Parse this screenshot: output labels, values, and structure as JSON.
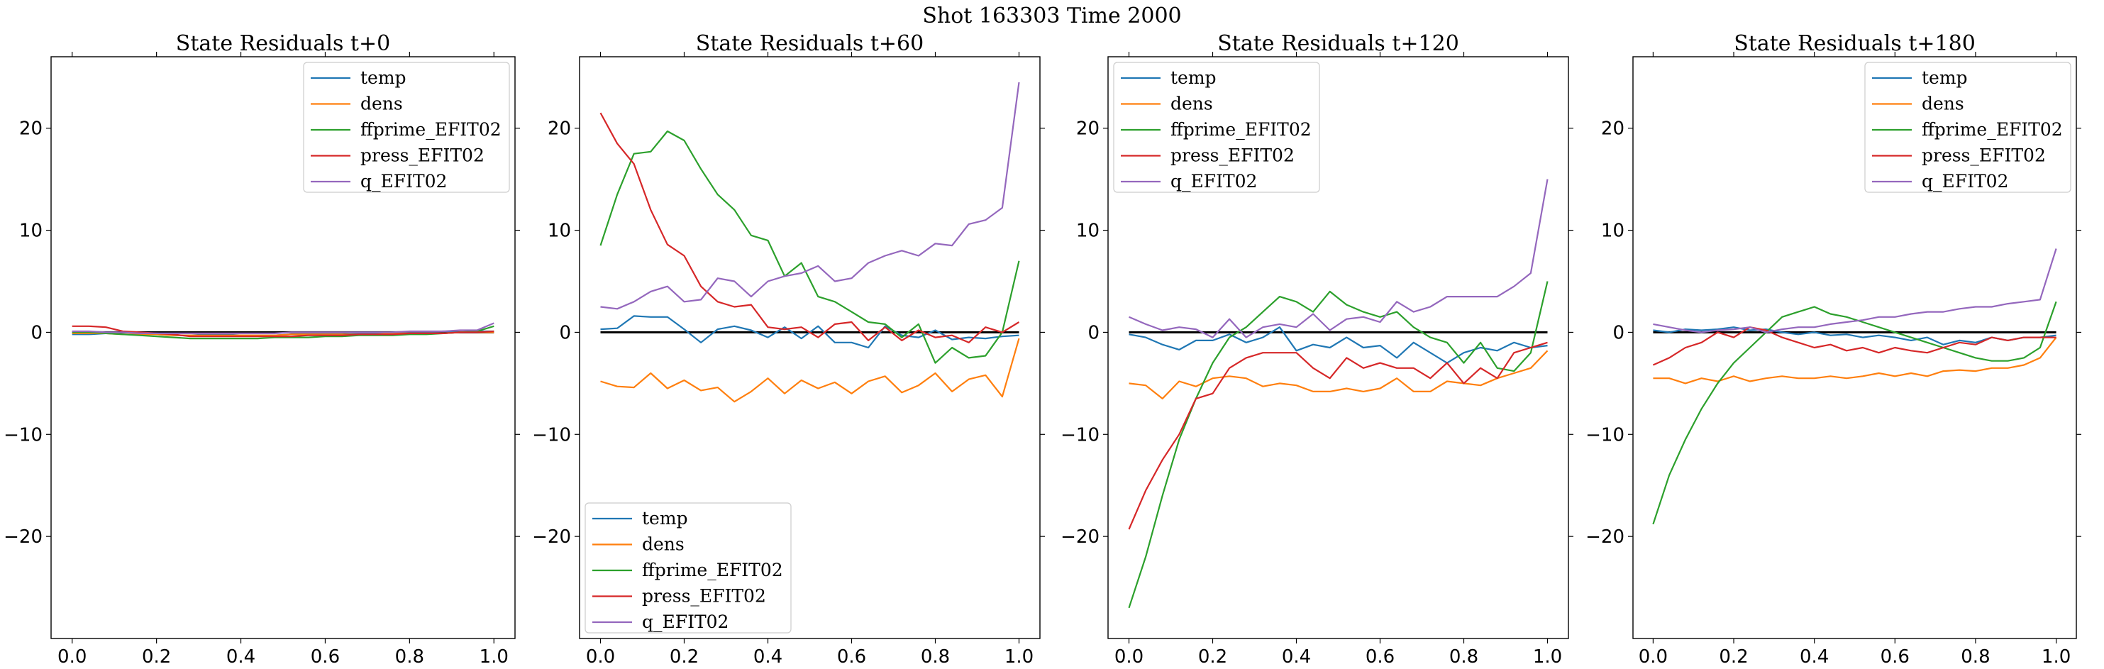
{
  "figure": {
    "suptitle": "Shot 163303   Time 2000"
  },
  "chart_data": [
    {
      "type": "line",
      "title": "State Residuals t+0",
      "xlabel": "",
      "ylabel": "",
      "xlim": [
        -0.05,
        1.05
      ],
      "ylim": [
        -30,
        27
      ],
      "xticks": [
        0.0,
        0.2,
        0.4,
        0.6,
        0.8,
        1.0
      ],
      "xtick_labels": [
        "0.0",
        "0.2",
        "0.4",
        "0.6",
        "0.8",
        "1.0"
      ],
      "yticks": [
        -20,
        -10,
        0,
        10,
        20
      ],
      "ytick_labels": [
        "−20",
        "−10",
        "0",
        "10",
        "20"
      ],
      "zero_line": true,
      "legend_position": "upper right",
      "x": [
        0.0,
        0.04,
        0.08,
        0.12,
        0.16,
        0.2,
        0.24,
        0.28,
        0.32,
        0.36,
        0.4,
        0.44,
        0.48,
        0.52,
        0.56,
        0.6,
        0.64,
        0.68,
        0.72,
        0.76,
        0.8,
        0.84,
        0.88,
        0.92,
        0.96,
        1.0
      ],
      "series": [
        {
          "name": "temp",
          "color": "#1f77b4",
          "values": [
            -0.2,
            -0.2,
            -0.1,
            0.0,
            -0.1,
            -0.2,
            -0.3,
            -0.3,
            -0.2,
            -0.2,
            -0.3,
            -0.3,
            -0.3,
            -0.2,
            -0.2,
            -0.2,
            -0.2,
            -0.1,
            -0.1,
            0.0,
            0.0,
            0.0,
            0.1,
            0.0,
            0.1,
            0.1
          ]
        },
        {
          "name": "dens",
          "color": "#ff7f0e",
          "values": [
            -0.1,
            -0.1,
            -0.1,
            -0.2,
            -0.2,
            -0.2,
            -0.3,
            -0.3,
            -0.3,
            -0.3,
            -0.3,
            -0.3,
            -0.3,
            -0.2,
            -0.2,
            -0.2,
            -0.2,
            -0.2,
            -0.2,
            -0.1,
            -0.1,
            -0.1,
            -0.1,
            0.0,
            0.0,
            0.0
          ]
        },
        {
          "name": "ffprime_EFIT02",
          "color": "#2ca02c",
          "values": [
            0.0,
            0.0,
            -0.1,
            -0.2,
            -0.3,
            -0.4,
            -0.5,
            -0.6,
            -0.6,
            -0.6,
            -0.6,
            -0.6,
            -0.5,
            -0.5,
            -0.5,
            -0.4,
            -0.4,
            -0.3,
            -0.3,
            -0.3,
            -0.2,
            -0.2,
            -0.1,
            0.0,
            0.1,
            0.6
          ]
        },
        {
          "name": "press_EFIT02",
          "color": "#d62728",
          "values": [
            0.6,
            0.6,
            0.5,
            0.1,
            0.0,
            -0.1,
            -0.2,
            -0.4,
            -0.4,
            -0.4,
            -0.4,
            -0.4,
            -0.4,
            -0.4,
            -0.3,
            -0.3,
            -0.3,
            -0.2,
            -0.2,
            -0.2,
            -0.1,
            -0.1,
            -0.1,
            0.0,
            0.0,
            0.1
          ]
        },
        {
          "name": "q_EFIT02",
          "color": "#9467bd",
          "values": [
            0.1,
            0.1,
            0.0,
            0.0,
            -0.1,
            -0.1,
            -0.1,
            -0.1,
            -0.1,
            -0.1,
            -0.1,
            -0.1,
            -0.1,
            0.0,
            0.0,
            0.0,
            0.0,
            0.0,
            0.0,
            0.0,
            0.1,
            0.1,
            0.1,
            0.2,
            0.2,
            0.9
          ]
        }
      ]
    },
    {
      "type": "line",
      "title": "State Residuals t+60",
      "xlabel": "",
      "ylabel": "",
      "xlim": [
        -0.05,
        1.05
      ],
      "ylim": [
        -30,
        27
      ],
      "xticks": [
        0.0,
        0.2,
        0.4,
        0.6,
        0.8,
        1.0
      ],
      "xtick_labels": [
        "0.0",
        "0.2",
        "0.4",
        "0.6",
        "0.8",
        "1.0"
      ],
      "yticks": [
        -20,
        -10,
        0,
        10,
        20
      ],
      "ytick_labels": [
        "−20",
        "−10",
        "0",
        "10",
        "20"
      ],
      "zero_line": true,
      "legend_position": "lower left",
      "x": [
        0.0,
        0.04,
        0.08,
        0.12,
        0.16,
        0.2,
        0.24,
        0.28,
        0.32,
        0.36,
        0.4,
        0.44,
        0.48,
        0.52,
        0.56,
        0.6,
        0.64,
        0.68,
        0.72,
        0.76,
        0.8,
        0.84,
        0.88,
        0.92,
        0.96,
        1.0
      ],
      "series": [
        {
          "name": "temp",
          "color": "#1f77b4",
          "values": [
            0.3,
            0.4,
            1.6,
            1.5,
            1.5,
            0.3,
            -1.0,
            0.3,
            0.6,
            0.2,
            -0.5,
            0.5,
            -0.6,
            0.6,
            -1.0,
            -1.0,
            -1.5,
            0.6,
            -0.3,
            -0.5,
            0.2,
            -0.7,
            -0.5,
            -0.6,
            -0.4,
            -0.3
          ]
        },
        {
          "name": "dens",
          "color": "#ff7f0e",
          "values": [
            -4.8,
            -5.3,
            -5.4,
            -4.0,
            -5.5,
            -4.7,
            -5.7,
            -5.4,
            -6.8,
            -5.8,
            -4.5,
            -6.0,
            -4.7,
            -5.5,
            -4.9,
            -6.0,
            -4.8,
            -4.3,
            -5.9,
            -5.2,
            -4.0,
            -5.8,
            -4.6,
            -4.2,
            -6.3,
            -0.6
          ]
        },
        {
          "name": "ffprime_EFIT02",
          "color": "#2ca02c",
          "values": [
            8.5,
            13.5,
            17.5,
            17.7,
            19.7,
            18.8,
            16.0,
            13.5,
            12.0,
            9.5,
            9.0,
            5.5,
            6.8,
            3.5,
            3.0,
            2.0,
            1.0,
            0.8,
            -0.5,
            0.8,
            -3.0,
            -1.5,
            -2.5,
            -2.3,
            0.0,
            7.0
          ]
        },
        {
          "name": "press_EFIT02",
          "color": "#d62728",
          "values": [
            21.5,
            18.5,
            16.5,
            12.0,
            8.6,
            7.5,
            4.5,
            3.0,
            2.5,
            2.7,
            0.5,
            0.3,
            0.5,
            -0.5,
            0.8,
            1.0,
            -0.8,
            0.5,
            -0.8,
            0.2,
            -0.5,
            -0.3,
            -1.0,
            0.5,
            0.0,
            1.0
          ]
        },
        {
          "name": "q_EFIT02",
          "color": "#9467bd",
          "values": [
            2.5,
            2.3,
            3.0,
            4.0,
            4.5,
            3.0,
            3.2,
            5.3,
            5.0,
            3.5,
            5.0,
            5.5,
            5.8,
            6.5,
            5.0,
            5.3,
            6.8,
            7.5,
            8.0,
            7.5,
            8.7,
            8.5,
            10.6,
            11.0,
            12.2,
            24.5
          ]
        }
      ]
    },
    {
      "type": "line",
      "title": "State Residuals t+120",
      "xlabel": "",
      "ylabel": "",
      "xlim": [
        -0.05,
        1.05
      ],
      "ylim": [
        -30,
        27
      ],
      "xticks": [
        0.0,
        0.2,
        0.4,
        0.6,
        0.8,
        1.0
      ],
      "xtick_labels": [
        "0.0",
        "0.2",
        "0.4",
        "0.6",
        "0.8",
        "1.0"
      ],
      "yticks": [
        -20,
        -10,
        0,
        10,
        20
      ],
      "ytick_labels": [
        "−20",
        "−10",
        "0",
        "10",
        "20"
      ],
      "zero_line": true,
      "legend_position": "upper left",
      "x": [
        0.0,
        0.04,
        0.08,
        0.12,
        0.16,
        0.2,
        0.24,
        0.28,
        0.32,
        0.36,
        0.4,
        0.44,
        0.48,
        0.52,
        0.56,
        0.6,
        0.64,
        0.68,
        0.72,
        0.76,
        0.8,
        0.84,
        0.88,
        0.92,
        0.96,
        1.0
      ],
      "series": [
        {
          "name": "temp",
          "color": "#1f77b4",
          "values": [
            -0.2,
            -0.5,
            -1.2,
            -1.7,
            -0.8,
            -0.8,
            -0.2,
            -1.0,
            -0.5,
            0.5,
            -1.8,
            -1.2,
            -1.5,
            -0.5,
            -1.5,
            -1.3,
            -2.5,
            -1.0,
            -2.0,
            -3.0,
            -2.0,
            -1.5,
            -1.8,
            -1.0,
            -1.5,
            -1.3
          ]
        },
        {
          "name": "dens",
          "color": "#ff7f0e",
          "values": [
            -5.0,
            -5.2,
            -6.5,
            -4.8,
            -5.3,
            -4.5,
            -4.3,
            -4.5,
            -5.3,
            -5.0,
            -5.2,
            -5.8,
            -5.8,
            -5.5,
            -5.8,
            -5.5,
            -4.5,
            -5.8,
            -5.8,
            -4.8,
            -5.0,
            -5.2,
            -4.5,
            -4.0,
            -3.5,
            -1.8
          ]
        },
        {
          "name": "ffprime_EFIT02",
          "color": "#2ca02c",
          "values": [
            -27.0,
            -22.0,
            -16.0,
            -10.5,
            -6.5,
            -3.0,
            -0.5,
            0.5,
            2.0,
            3.5,
            3.0,
            2.0,
            4.0,
            2.7,
            2.0,
            1.5,
            2.0,
            0.5,
            -0.5,
            -1.0,
            -3.0,
            -1.0,
            -3.5,
            -3.8,
            -2.0,
            5.0
          ]
        },
        {
          "name": "press_EFIT02",
          "color": "#d62728",
          "values": [
            -19.3,
            -15.5,
            -12.5,
            -10.0,
            -6.5,
            -6.0,
            -3.5,
            -2.5,
            -2.0,
            -2.0,
            -2.0,
            -3.5,
            -4.5,
            -2.5,
            -3.5,
            -3.0,
            -3.5,
            -3.5,
            -4.5,
            -3.0,
            -5.0,
            -3.5,
            -4.5,
            -2.0,
            -1.5,
            -1.0
          ]
        },
        {
          "name": "q_EFIT02",
          "color": "#9467bd",
          "values": [
            1.5,
            0.8,
            0.2,
            0.5,
            0.3,
            -0.5,
            1.3,
            -0.5,
            0.5,
            0.8,
            0.5,
            1.8,
            0.2,
            1.3,
            1.5,
            1.0,
            3.0,
            2.0,
            2.5,
            3.5,
            3.5,
            3.5,
            3.5,
            4.5,
            5.8,
            15.0
          ]
        }
      ]
    },
    {
      "type": "line",
      "title": "State Residuals t+180",
      "xlabel": "",
      "ylabel": "",
      "xlim": [
        -0.05,
        1.05
      ],
      "ylim": [
        -30,
        27
      ],
      "xticks": [
        0.0,
        0.2,
        0.4,
        0.6,
        0.8,
        1.0
      ],
      "xtick_labels": [
        "0.0",
        "0.2",
        "0.4",
        "0.6",
        "0.8",
        "1.0"
      ],
      "yticks": [
        -20,
        -10,
        0,
        10,
        20
      ],
      "ytick_labels": [
        "−20",
        "−10",
        "0",
        "10",
        "20"
      ],
      "zero_line": true,
      "legend_position": "upper right",
      "x": [
        0.0,
        0.04,
        0.08,
        0.12,
        0.16,
        0.2,
        0.24,
        0.28,
        0.32,
        0.36,
        0.4,
        0.44,
        0.48,
        0.52,
        0.56,
        0.6,
        0.64,
        0.68,
        0.72,
        0.76,
        0.8,
        0.84,
        0.88,
        0.92,
        0.96,
        1.0
      ],
      "series": [
        {
          "name": "temp",
          "color": "#1f77b4",
          "values": [
            0.2,
            0.0,
            0.3,
            0.2,
            0.3,
            0.5,
            0.2,
            0.3,
            0.0,
            -0.2,
            0.0,
            -0.3,
            -0.2,
            -0.5,
            -0.3,
            -0.5,
            -0.8,
            -0.5,
            -1.2,
            -0.8,
            -1.0,
            -0.5,
            -0.8,
            -0.5,
            -0.5,
            -0.3
          ]
        },
        {
          "name": "dens",
          "color": "#ff7f0e",
          "values": [
            -4.5,
            -4.5,
            -5.0,
            -4.5,
            -4.8,
            -4.3,
            -4.8,
            -4.5,
            -4.3,
            -4.5,
            -4.5,
            -4.3,
            -4.5,
            -4.3,
            -4.0,
            -4.3,
            -4.0,
            -4.3,
            -3.8,
            -3.7,
            -3.8,
            -3.5,
            -3.5,
            -3.2,
            -2.5,
            -0.5
          ]
        },
        {
          "name": "ffprime_EFIT02",
          "color": "#2ca02c",
          "values": [
            -18.8,
            -14.0,
            -10.5,
            -7.5,
            -5.0,
            -3.0,
            -1.5,
            0.0,
            1.5,
            2.0,
            2.5,
            1.8,
            1.5,
            1.0,
            0.5,
            0.0,
            -0.5,
            -1.0,
            -1.5,
            -2.0,
            -2.5,
            -2.8,
            -2.8,
            -2.5,
            -1.5,
            3.0
          ]
        },
        {
          "name": "press_EFIT02",
          "color": "#d62728",
          "values": [
            -3.2,
            -2.5,
            -1.5,
            -1.0,
            0.0,
            -0.5,
            0.5,
            0.2,
            -0.5,
            -1.0,
            -1.5,
            -1.2,
            -1.8,
            -1.5,
            -2.0,
            -1.5,
            -1.8,
            -2.0,
            -1.5,
            -1.0,
            -1.2,
            -0.5,
            -0.8,
            -0.5,
            -0.5,
            -0.5
          ]
        },
        {
          "name": "q_EFIT02",
          "color": "#9467bd",
          "values": [
            0.8,
            0.5,
            0.2,
            0.0,
            0.2,
            0.3,
            0.5,
            0.0,
            0.3,
            0.5,
            0.5,
            0.8,
            1.0,
            1.2,
            1.5,
            1.5,
            1.8,
            2.0,
            2.0,
            2.3,
            2.5,
            2.5,
            2.8,
            3.0,
            3.2,
            8.2
          ]
        }
      ]
    }
  ]
}
